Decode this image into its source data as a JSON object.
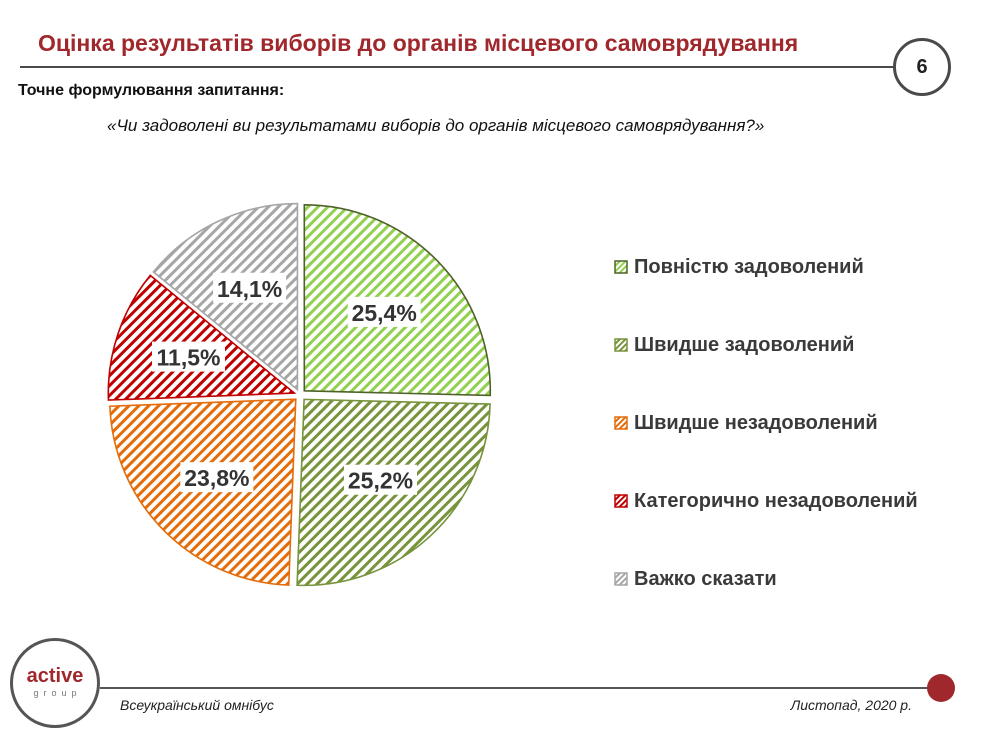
{
  "header": {
    "title": "Оцінка результатів виборів до органів місцевого самоврядування",
    "page_number": "6"
  },
  "question": {
    "label": "Точне формулювання запитання:",
    "text": "«Чи задоволені ви результатами виборів до органів місцевого самоврядування?»"
  },
  "chart_data": {
    "type": "pie",
    "style": "hatched slices, exploded",
    "legend_position": "right",
    "slices": [
      {
        "name": "Повністю задоволений",
        "value": 25.4,
        "label": "25,4%",
        "color": "#92d050",
        "stroke": "#4f6228"
      },
      {
        "name": "Швидше задоволений",
        "value": 25.2,
        "label": "25,2%",
        "color": "#77933c",
        "stroke": "#77933c"
      },
      {
        "name": "Швидше незадоволений",
        "value": 23.8,
        "label": "23,8%",
        "color": "#e46c0a",
        "stroke": "#e46c0a"
      },
      {
        "name": "Категорично незадоволений",
        "value": 11.5,
        "label": "11,5%",
        "color": "#c00000",
        "stroke": "#c00000"
      },
      {
        "name": "Важко сказати",
        "value": 14.1,
        "label": "14,1%",
        "color": "#a6a6a6",
        "stroke": "#a6a6a6"
      }
    ]
  },
  "footer": {
    "logo_main": "active",
    "logo_sub": "group",
    "left_text": "Всеукраїнський омнібус",
    "right_text": "Листопад, 2020 р."
  },
  "colors": {
    "accent": "#a0282c",
    "rule": "#4a4a4a"
  }
}
